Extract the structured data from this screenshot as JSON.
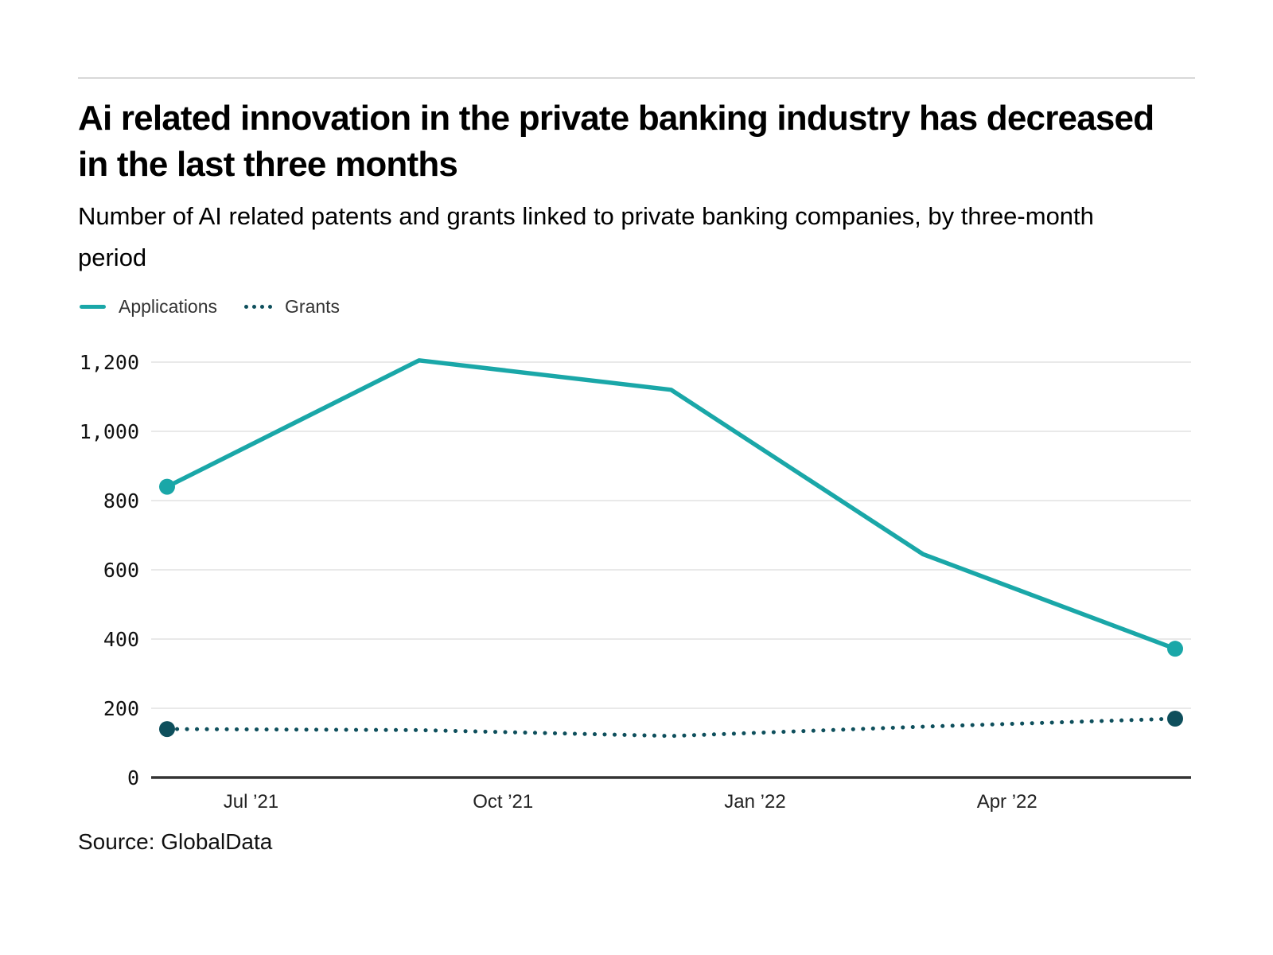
{
  "header": {
    "title": "Ai related innovation in the private banking industry has decreased in the last three months",
    "subtitle": "Number of AI related patents and grants linked to private banking companies, by three-month period"
  },
  "footer": {
    "source": "Source: GlobalData"
  },
  "chart_data": {
    "type": "line",
    "title": "Ai related innovation in the private banking industry has decreased in the last three months",
    "subtitle": "Number of AI related patents and grants linked to private banking companies, by three-month period",
    "num_points": 5,
    "series": [
      {
        "name": "Applications",
        "line_style": "solid",
        "color": "#1aa7a8",
        "values": [
          840,
          1205,
          1120,
          645,
          372
        ]
      },
      {
        "name": "Grants",
        "line_style": "dotted",
        "color": "#0e4f5c",
        "values": [
          140,
          137,
          120,
          147,
          170
        ]
      }
    ],
    "marker": "endpoints-only",
    "ylim": [
      0,
      1200
    ],
    "yticks": [
      0,
      200,
      400,
      600,
      800,
      1000,
      1200
    ],
    "ytick_labels": [
      "0",
      "200",
      "400",
      "600",
      "800",
      "1,000",
      "1,200"
    ],
    "x_tick_labels": [
      "Jul ’21",
      "Oct ’21",
      "Jan ’22",
      "Apr ’22"
    ],
    "x_tick_positions": [
      0.333,
      1.333,
      2.333,
      3.333
    ],
    "grid": "horizontal",
    "grid_color": "#e9e9e9",
    "axis_color": "#333333",
    "legend_position": "top-left",
    "source": "Source: GlobalData"
  }
}
